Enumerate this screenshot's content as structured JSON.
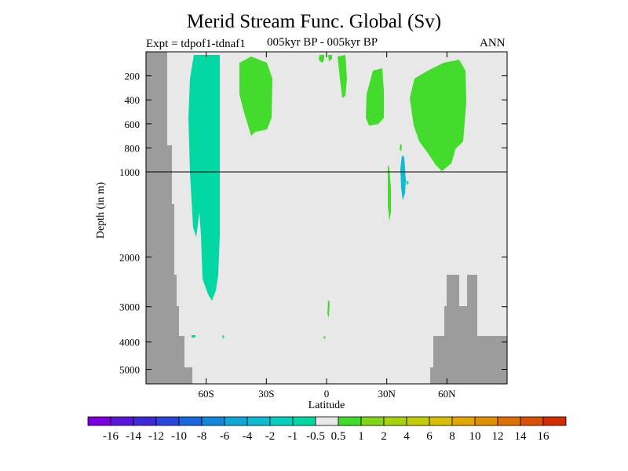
{
  "chart_data": {
    "type": "heatmap",
    "title": "Merid Stream Func. Global (Sv)",
    "subtitle_left": "Expt = tdpof1-tdnaf1",
    "subtitle_center": "005kyr BP - 005kyr BP",
    "subtitle_right": "ANN",
    "xlabel": "Latitude",
    "ylabel": "Depth (in m)",
    "xlim": [
      -90,
      90
    ],
    "x_ticks": [
      -60,
      -30,
      0,
      30,
      60
    ],
    "x_tick_labels": [
      "60S",
      "30S",
      "0",
      "30N",
      "60N"
    ],
    "y_ticks_upper": [
      200,
      400,
      600,
      800,
      1000
    ],
    "y_ticks_lower": [
      2000,
      3000,
      4000,
      5000
    ],
    "y_tick_labels": [
      "200",
      "400",
      "600",
      "800",
      "1000",
      "2000",
      "3000",
      "4000",
      "5000"
    ],
    "reference_line_depth": 1000,
    "colorbar": {
      "labels": [
        "-16",
        "-14",
        "-12",
        "-10",
        "-8",
        "-6",
        "-4",
        "-2",
        "-1",
        "-0.5",
        "0.5",
        "1",
        "2",
        "4",
        "6",
        "8",
        "10",
        "12",
        "14",
        "16"
      ],
      "colors": [
        "#7b00e0",
        "#5a16d8",
        "#3f28d6",
        "#2a44dc",
        "#1a66e0",
        "#1288dc",
        "#0ea8d8",
        "#0bbcd2",
        "#06cfc0",
        "#03d8a4",
        "#e8e8e8",
        "#44dc2c",
        "#82d61a",
        "#a6d20e",
        "#c4cc08",
        "#d8be04",
        "#e0a800",
        "#e09000",
        "#dc7000",
        "#d85000",
        "#d42c00"
      ]
    },
    "colors": {
      "background": "#e8e8e8",
      "land": "#9c9c9c",
      "negative_cell": "#03d8a4",
      "positive_cell": "#44dc2c",
      "cyan_patch": "#0bbcd2"
    }
  }
}
